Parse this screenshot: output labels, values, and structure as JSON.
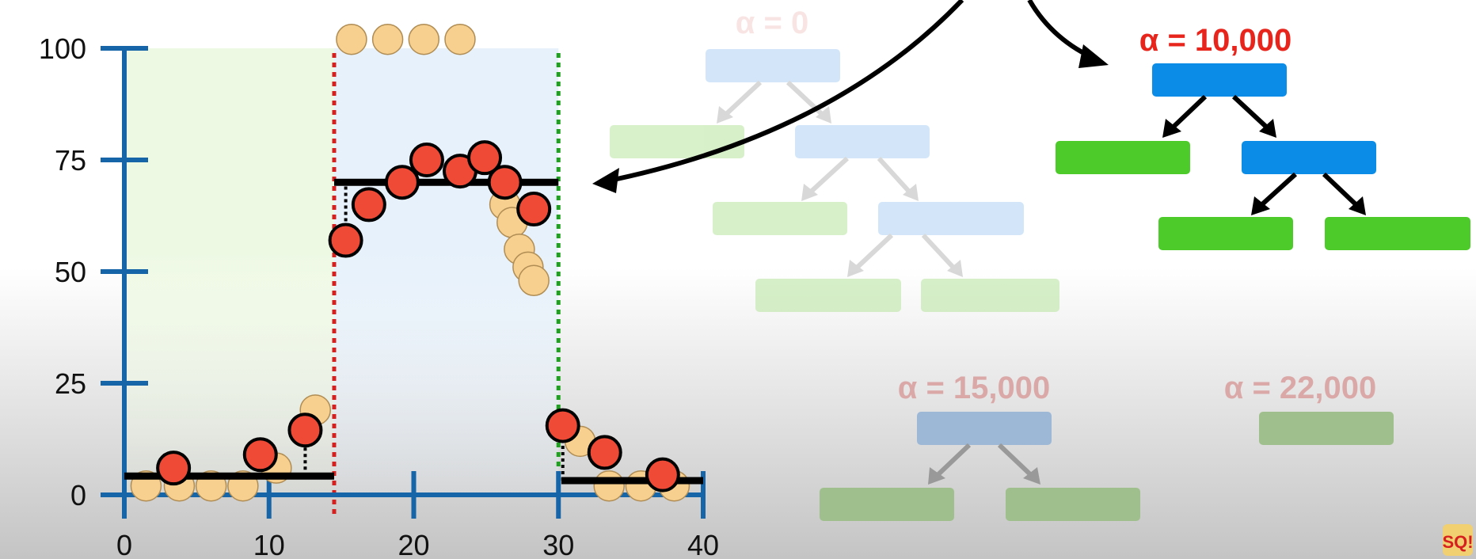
{
  "chart_data": {
    "type": "scatter",
    "x_ticks": [
      "0",
      "10",
      "20",
      "30",
      "40"
    ],
    "y_ticks": [
      "0",
      "25",
      "50",
      "75",
      "100"
    ],
    "xlim": [
      0,
      40
    ],
    "ylim": [
      0,
      100
    ],
    "grid": false,
    "thresholds": [
      14.5,
      30
    ],
    "regions": [
      {
        "x_range": [
          0,
          14.5
        ],
        "color": "#eef9e4"
      },
      {
        "x_range": [
          14.5,
          30
        ],
        "color": "#e6f1fb"
      }
    ],
    "tan_points": [
      {
        "x": 1.5,
        "y": 2
      },
      {
        "x": 3.8,
        "y": 2
      },
      {
        "x": 6,
        "y": 2
      },
      {
        "x": 8.2,
        "y": 2
      },
      {
        "x": 10.5,
        "y": 6
      },
      {
        "x": 13.2,
        "y": 19
      },
      {
        "x": 15.7,
        "y": 102
      },
      {
        "x": 18.2,
        "y": 102
      },
      {
        "x": 20.7,
        "y": 102
      },
      {
        "x": 23.2,
        "y": 102
      },
      {
        "x": 26.3,
        "y": 65
      },
      {
        "x": 26.8,
        "y": 61
      },
      {
        "x": 27.3,
        "y": 55
      },
      {
        "x": 27.9,
        "y": 51
      },
      {
        "x": 28.3,
        "y": 48
      },
      {
        "x": 31.5,
        "y": 12
      },
      {
        "x": 33.5,
        "y": 2
      },
      {
        "x": 35.7,
        "y": 2
      },
      {
        "x": 38,
        "y": 2
      }
    ],
    "red_points": [
      {
        "x": 3.4,
        "y": 6
      },
      {
        "x": 9.4,
        "y": 9
      },
      {
        "x": 12.5,
        "y": 14.5
      },
      {
        "x": 15.3,
        "y": 57
      },
      {
        "x": 16.9,
        "y": 65
      },
      {
        "x": 19.2,
        "y": 70
      },
      {
        "x": 20.9,
        "y": 75
      },
      {
        "x": 23.2,
        "y": 72.5
      },
      {
        "x": 24.9,
        "y": 75.5
      },
      {
        "x": 26.3,
        "y": 70
      },
      {
        "x": 28.3,
        "y": 64
      },
      {
        "x": 30.3,
        "y": 15.5
      },
      {
        "x": 33.2,
        "y": 9.5
      },
      {
        "x": 37.2,
        "y": 4.5
      }
    ],
    "segments": [
      {
        "x_start": 0,
        "x_end": 14.5,
        "y": 4.2
      },
      {
        "x_start": 14.5,
        "x_end": 30,
        "y": 70
      },
      {
        "x_start": 30.2,
        "x_end": 40,
        "y": 3.2
      }
    ],
    "residuals": [
      {
        "x": 12.5,
        "y_from": 4.2,
        "y_to": 14.5
      },
      {
        "x": 15.3,
        "y_from": 57,
        "y_to": 70
      },
      {
        "x": 30.3,
        "y_from": 3.2,
        "y_to": 15.5
      }
    ]
  },
  "trees": [
    {
      "label": "α = 0",
      "color": "#f2c4c4"
    },
    {
      "label": "α = 10,000",
      "color": "#e8251c"
    },
    {
      "label": "α = 15,000",
      "color": "#dba8a8"
    },
    {
      "label": "α = 22,000",
      "color": "#dba8a8"
    }
  ]
}
